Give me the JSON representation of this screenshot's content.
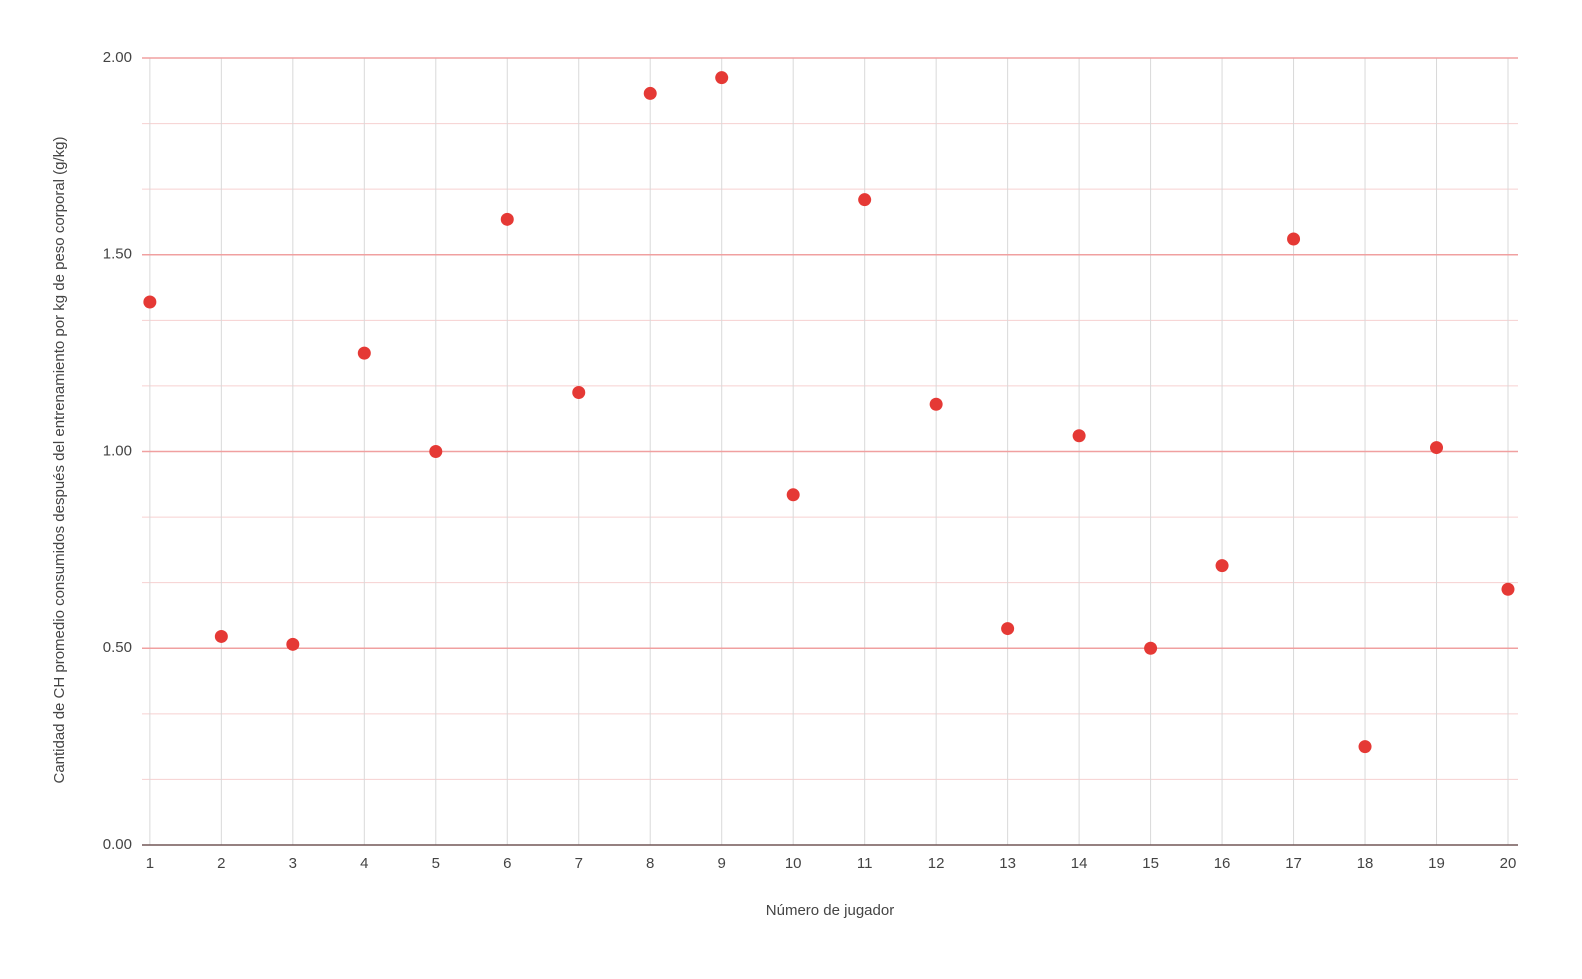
{
  "chart_data": {
    "type": "scatter",
    "x_label": "Número de jugador",
    "y_label": "Cantidad de CH promedio consumidos después del entrenamiento por kg de peso corporal (g/kg)",
    "x": [
      1,
      2,
      3,
      4,
      5,
      6,
      7,
      8,
      9,
      10,
      11,
      12,
      13,
      14,
      15,
      16,
      17,
      18,
      19,
      20
    ],
    "series": [
      {
        "color": "#e53935",
        "values": [
          1.38,
          0.53,
          0.51,
          1.25,
          1.0,
          1.59,
          1.15,
          1.91,
          1.95,
          0.89,
          1.64,
          1.12,
          0.55,
          1.04,
          0.5,
          0.71,
          1.54,
          0.25,
          1.01,
          0.65
        ]
      }
    ],
    "xlim": [
      0.89,
      20.14
    ],
    "xticks": [
      1,
      2,
      3,
      4,
      5,
      6,
      7,
      8,
      9,
      10,
      11,
      12,
      13,
      14,
      15,
      16,
      17,
      18,
      19,
      20
    ],
    "ylim": [
      0,
      2
    ],
    "yticks": [
      {
        "value": 0,
        "label": "0.00"
      },
      {
        "value": 0.5,
        "label": "0.50"
      },
      {
        "value": 1,
        "label": "1.00"
      },
      {
        "value": 1.5,
        "label": "1.50"
      },
      {
        "value": 2,
        "label": "2.00"
      }
    ],
    "grid": true
  }
}
